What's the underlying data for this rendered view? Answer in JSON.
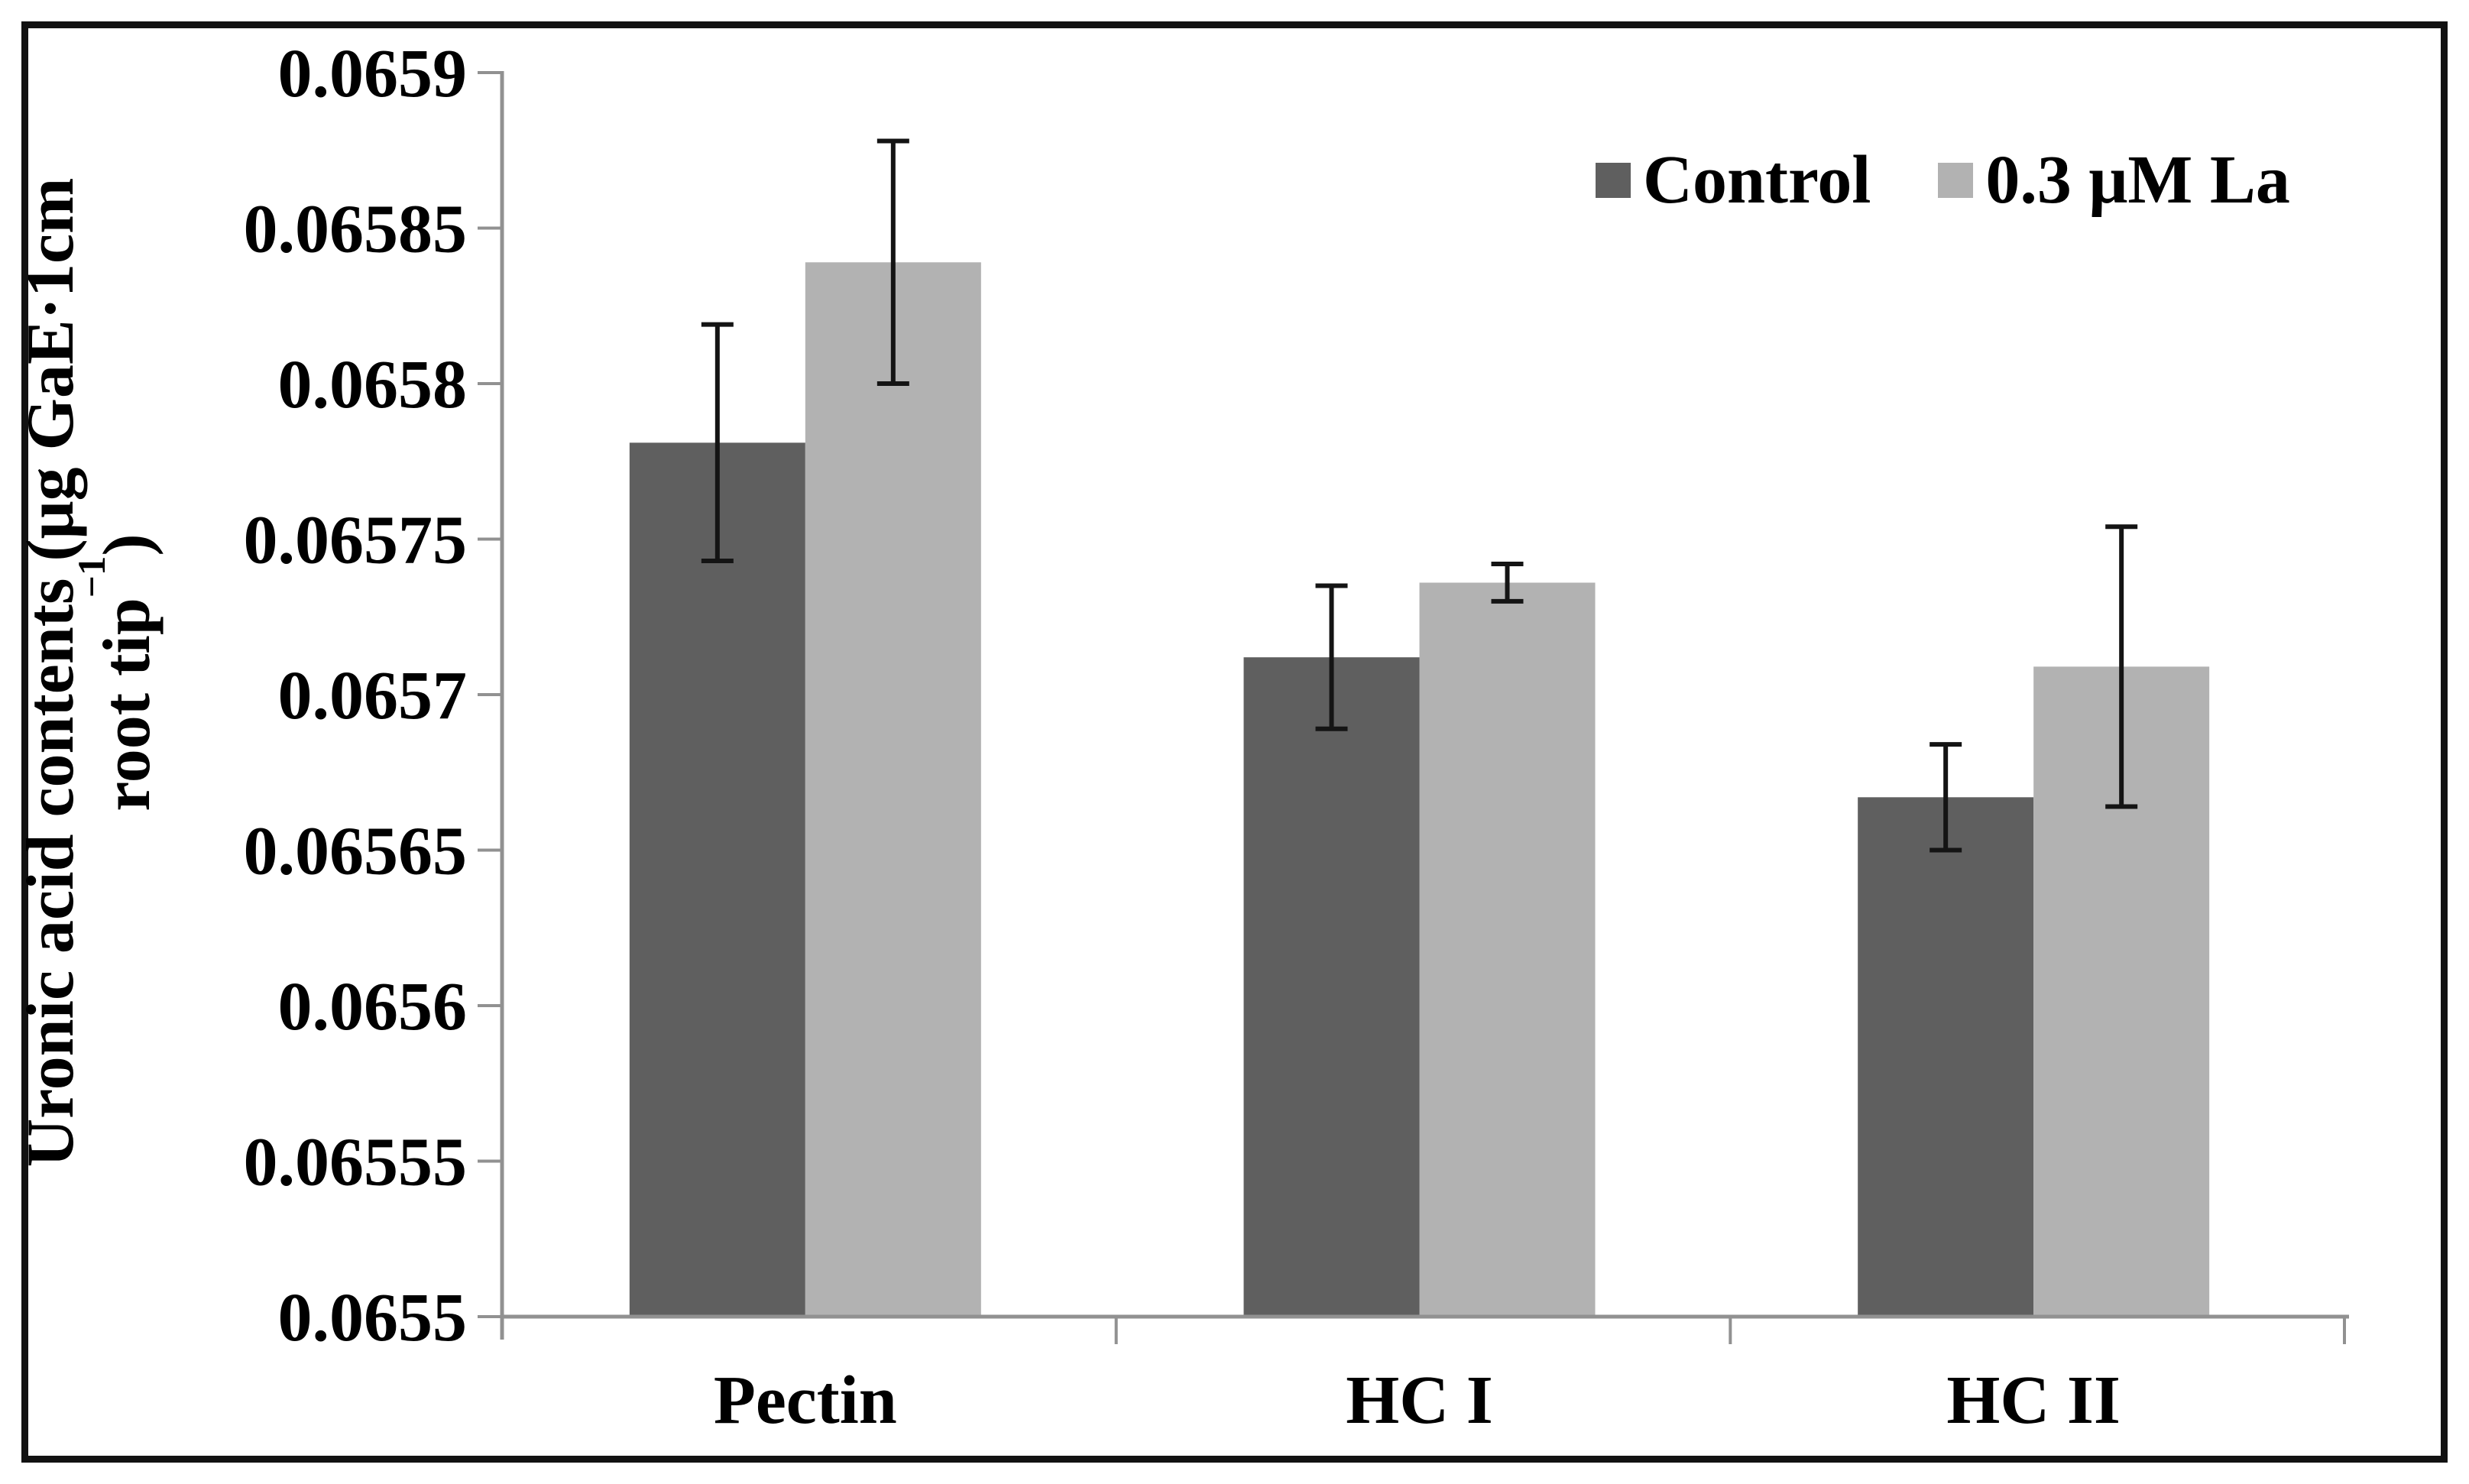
{
  "figure": {
    "background": "#ffffff",
    "frame_color": "#121212"
  },
  "y_axis": {
    "title_line1": "Uronic acid contents (μg GaE·1cm",
    "title_line2_base": "root tip",
    "title_line2_sup": "−1",
    "title_line2_close": ")",
    "tick_labels": [
      "0.0655",
      "0.06555",
      "0.0656",
      "0.06565",
      "0.0657",
      "0.06575",
      "0.0658",
      "0.06585",
      "0.0659"
    ]
  },
  "x_axis": {
    "labels": [
      "Pectin",
      "HC I",
      "HC II"
    ]
  },
  "legend": {
    "items": [
      {
        "label": "Control",
        "color": "#5f5f5f"
      },
      {
        "label": "0.3 μM La",
        "color": "#b2b2b2"
      }
    ]
  },
  "colors": {
    "axis": "#919191",
    "error_bar": "#141414",
    "text": "#000000"
  },
  "chart_data": {
    "type": "bar",
    "title": "",
    "categories": [
      "Pectin",
      "HC I",
      "HC II"
    ],
    "series": [
      {
        "name": "Control",
        "color": "#5f5f5f",
        "values": [
          0.065781,
          0.065712,
          0.065667
        ],
        "errors": [
          3.8e-05,
          2.3e-05,
          1.7e-05
        ]
      },
      {
        "name": "0.3 μM La",
        "color": "#b2b2b2",
        "values": [
          0.065839,
          0.065736,
          0.065709
        ],
        "errors": [
          3.9e-05,
          6e-06,
          4.5e-05
        ]
      }
    ],
    "xlabel": "",
    "ylabel": "Uronic acid contents (μg GaE·1cm root tip⁻¹)",
    "ylim": [
      0.0655,
      0.0659
    ],
    "ytick_step": 5e-05,
    "ytick_format": "trailing zeros trimmed",
    "grid": false,
    "legend_position": "top-right-inside",
    "error_bars": true,
    "bar_gap_within_pair": 0
  }
}
